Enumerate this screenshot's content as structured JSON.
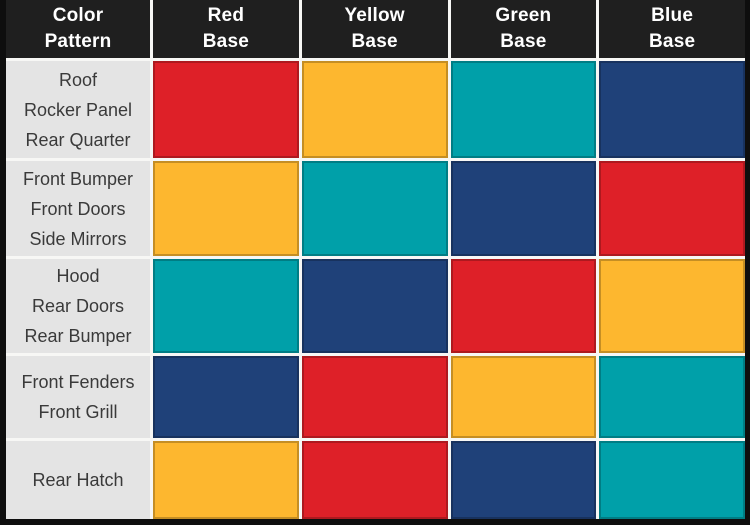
{
  "chart_data": {
    "type": "table",
    "title": "Color Pattern by Base Color",
    "columns": [
      "Color Pattern",
      "Red Base",
      "Yellow Base",
      "Green Base",
      "Blue Base"
    ],
    "rows": [
      {
        "color_pattern": "Roof, Rocker Panel, Rear Quarter",
        "red_base": "red",
        "yellow_base": "yellow",
        "green_base": "teal",
        "blue_base": "navy"
      },
      {
        "color_pattern": "Front Bumper, Front Doors, Side Mirrors",
        "red_base": "yellow",
        "yellow_base": "teal",
        "green_base": "navy",
        "blue_base": "red"
      },
      {
        "color_pattern": "Hood, Rear Doors, Rear Bumper",
        "red_base": "teal",
        "yellow_base": "navy",
        "green_base": "red",
        "blue_base": "yellow"
      },
      {
        "color_pattern": "Front Fenders, Front Grill",
        "red_base": "navy",
        "yellow_base": "red",
        "green_base": "yellow",
        "blue_base": "teal"
      },
      {
        "color_pattern": "Rear Hatch",
        "red_base": "yellow",
        "yellow_base": "red",
        "green_base": "navy",
        "blue_base": "teal"
      }
    ],
    "cell_color_hex": {
      "red": "#de2028",
      "yellow": "#fdb72f",
      "teal": "#00a0a9",
      "navy": "#1f4179"
    }
  },
  "table": {
    "header": [
      {
        "key": "color-pattern",
        "lines": [
          "Color",
          "Pattern"
        ]
      },
      {
        "key": "red-base",
        "lines": [
          "Red",
          "Base"
        ]
      },
      {
        "key": "yellow-base",
        "lines": [
          "Yellow",
          "Base"
        ]
      },
      {
        "key": "green-base",
        "lines": [
          "Green",
          "Base"
        ]
      },
      {
        "key": "blue-base",
        "lines": [
          "Blue",
          "Base"
        ]
      }
    ],
    "rows": [
      {
        "label_lines": [
          "Roof",
          "Rocker Panel",
          "Rear Quarter"
        ],
        "swatches": [
          "red",
          "yellow",
          "teal",
          "navy"
        ]
      },
      {
        "label_lines": [
          "Front Bumper",
          "Front Doors",
          "Side Mirrors"
        ],
        "swatches": [
          "yellow",
          "teal",
          "navy",
          "red"
        ]
      },
      {
        "label_lines": [
          "Hood",
          "Rear Doors",
          "Rear Bumper"
        ],
        "swatches": [
          "teal",
          "navy",
          "red",
          "yellow"
        ]
      },
      {
        "label_lines": [
          "Front Fenders",
          "Front Grill"
        ],
        "swatches": [
          "navy",
          "red",
          "yellow",
          "teal"
        ]
      },
      {
        "label_lines": [
          "Rear Hatch"
        ],
        "swatches": [
          "yellow",
          "red",
          "navy",
          "teal"
        ]
      }
    ]
  },
  "colors": {
    "red": "#de2028",
    "yellow": "#fdb72f",
    "teal": "#00a0a9",
    "navy": "#1f4179",
    "header_bg": "#1f1f1f",
    "label_bg": "#e4e4e4",
    "grid_line": "#f7f7f5",
    "outer_border": "#0e0e0e",
    "header_text": "#ffffff",
    "label_text": "#3a3a3a"
  }
}
